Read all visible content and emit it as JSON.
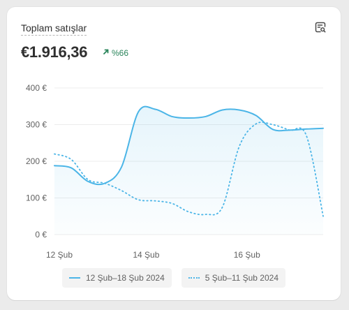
{
  "card": {
    "title": "Toplam satışlar",
    "value": "€1.916,36",
    "change": "%66",
    "change_direction": "up",
    "change_color": "#29845a",
    "explore_icon": "chart-search-icon"
  },
  "chart_data": {
    "type": "line",
    "title": "",
    "xlabel": "",
    "ylabel": "",
    "ylim": [
      0,
      400
    ],
    "y_ticks": [
      "0 €",
      "100 €",
      "200 €",
      "300 €",
      "400 €"
    ],
    "x_tick_labels": [
      "12 Şub",
      "14 Şub",
      "16 Şub"
    ],
    "grid": true,
    "legend_position": "bottom",
    "series": [
      {
        "name": "12 Şub–18 Şub 2024",
        "style": "solid",
        "color": "#4bb5e7",
        "area_fill": true,
        "values": [
          188,
          182,
          145,
          140,
          185,
          335,
          342,
          322,
          318,
          322,
          340,
          340,
          325,
          287,
          285,
          288,
          290
        ]
      },
      {
        "name": "5 Şub–11 Şub 2024",
        "style": "dotted",
        "color": "#4bb5e7",
        "area_fill": false,
        "values": [
          220,
          205,
          150,
          140,
          120,
          95,
          92,
          85,
          62,
          55,
          75,
          240,
          302,
          300,
          285,
          270,
          50
        ]
      }
    ]
  }
}
